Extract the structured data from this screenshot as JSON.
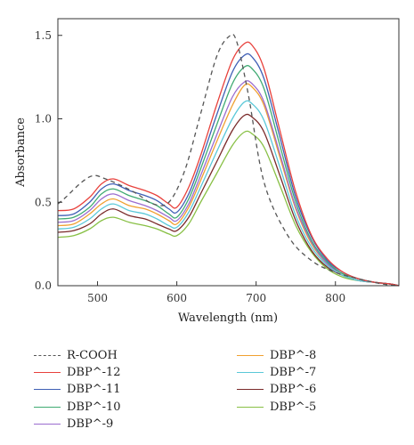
{
  "chart_data": {
    "type": "line",
    "title": "",
    "xlabel": "Wavelength (nm)",
    "ylabel": "Absorbance",
    "xlim": [
      450,
      880
    ],
    "ylim": [
      0.0,
      1.6
    ],
    "xticks": [
      500,
      600,
      700,
      800
    ],
    "xtick_labels": [
      "500",
      "600",
      "700",
      "800"
    ],
    "yticks": [
      0.0,
      0.5,
      1.0,
      1.5
    ],
    "ytick_labels": [
      "0.0",
      "0.5",
      "1.0",
      "1.5"
    ],
    "grid": false,
    "legend_position": "bottom, two columns",
    "series": [
      {
        "name": "R-COOH",
        "color": "#555555",
        "dashed": true,
        "x": [
          450,
          460,
          480,
          495,
          510,
          530,
          550,
          570,
          590,
          610,
          630,
          650,
          665,
          675,
          690,
          710,
          740,
          770,
          800,
          830,
          860,
          880
        ],
        "y": [
          0.49,
          0.53,
          0.62,
          0.66,
          0.64,
          0.6,
          0.55,
          0.49,
          0.5,
          0.69,
          1.03,
          1.37,
          1.49,
          1.47,
          1.15,
          0.62,
          0.3,
          0.15,
          0.08,
          0.04,
          0.01,
          0.0
        ]
      },
      {
        "name": "DBP^-12",
        "color": "#e8413c",
        "x": [
          450,
          470,
          490,
          505,
          520,
          540,
          560,
          575,
          590,
          600,
          615,
          630,
          650,
          670,
          685,
          695,
          710,
          730,
          750,
          770,
          790,
          810,
          830,
          850,
          870,
          880
        ],
        "y": [
          0.45,
          0.46,
          0.53,
          0.61,
          0.64,
          0.6,
          0.57,
          0.54,
          0.49,
          0.47,
          0.59,
          0.78,
          1.08,
          1.35,
          1.45,
          1.44,
          1.3,
          0.93,
          0.56,
          0.3,
          0.16,
          0.08,
          0.04,
          0.02,
          0.01,
          0.0
        ]
      },
      {
        "name": "DBP^-11",
        "color": "#3f5fb5",
        "x": [
          450,
          470,
          490,
          505,
          520,
          540,
          560,
          575,
          590,
          600,
          615,
          630,
          650,
          670,
          685,
          695,
          710,
          730,
          750,
          770,
          790,
          810,
          830,
          850,
          870,
          880
        ],
        "y": [
          0.42,
          0.43,
          0.5,
          0.58,
          0.61,
          0.57,
          0.54,
          0.51,
          0.46,
          0.44,
          0.55,
          0.74,
          1.02,
          1.28,
          1.38,
          1.37,
          1.24,
          0.89,
          0.53,
          0.29,
          0.15,
          0.08,
          0.04,
          0.02,
          0.01,
          0.0
        ]
      },
      {
        "name": "DBP^-10",
        "color": "#3faa72",
        "x": [
          450,
          470,
          490,
          505,
          520,
          540,
          560,
          575,
          590,
          600,
          615,
          630,
          650,
          670,
          685,
          695,
          710,
          730,
          750,
          770,
          790,
          810,
          830,
          850,
          870,
          880
        ],
        "y": [
          0.4,
          0.41,
          0.47,
          0.55,
          0.58,
          0.54,
          0.51,
          0.48,
          0.43,
          0.41,
          0.52,
          0.7,
          0.96,
          1.21,
          1.31,
          1.3,
          1.18,
          0.84,
          0.5,
          0.27,
          0.14,
          0.07,
          0.04,
          0.02,
          0.01,
          0.0
        ]
      },
      {
        "name": "DBP^-9",
        "color": "#9b6ccf",
        "x": [
          450,
          470,
          490,
          505,
          520,
          540,
          560,
          575,
          590,
          600,
          615,
          630,
          650,
          670,
          685,
          695,
          710,
          730,
          750,
          770,
          790,
          810,
          830,
          850,
          870,
          880
        ],
        "y": [
          0.38,
          0.39,
          0.45,
          0.52,
          0.55,
          0.51,
          0.48,
          0.45,
          0.41,
          0.39,
          0.49,
          0.66,
          0.9,
          1.13,
          1.22,
          1.21,
          1.1,
          0.79,
          0.47,
          0.26,
          0.13,
          0.07,
          0.04,
          0.02,
          0.01,
          0.0
        ]
      },
      {
        "name": "DBP^-8",
        "color": "#f0a030",
        "x": [
          450,
          470,
          490,
          505,
          520,
          540,
          560,
          575,
          590,
          600,
          615,
          630,
          650,
          670,
          685,
          695,
          710,
          730,
          750,
          770,
          790,
          810,
          830,
          850,
          870,
          880
        ],
        "y": [
          0.36,
          0.37,
          0.43,
          0.49,
          0.52,
          0.48,
          0.46,
          0.43,
          0.39,
          0.37,
          0.47,
          0.63,
          0.86,
          1.08,
          1.2,
          1.19,
          1.08,
          0.77,
          0.46,
          0.25,
          0.13,
          0.07,
          0.04,
          0.02,
          0.01,
          0.0
        ]
      },
      {
        "name": "DBP^-7",
        "color": "#5ac8d8",
        "x": [
          450,
          470,
          490,
          505,
          520,
          540,
          560,
          575,
          590,
          600,
          615,
          630,
          650,
          670,
          685,
          695,
          710,
          730,
          750,
          770,
          790,
          810,
          830,
          850,
          870,
          880
        ],
        "y": [
          0.34,
          0.35,
          0.4,
          0.46,
          0.49,
          0.45,
          0.43,
          0.4,
          0.36,
          0.35,
          0.44,
          0.59,
          0.8,
          1.0,
          1.1,
          1.09,
          0.99,
          0.71,
          0.42,
          0.23,
          0.12,
          0.06,
          0.03,
          0.02,
          0.01,
          0.0
        ]
      },
      {
        "name": "DBP^-6",
        "color": "#7a2a2a",
        "x": [
          450,
          470,
          490,
          505,
          520,
          540,
          560,
          575,
          590,
          600,
          615,
          630,
          650,
          670,
          685,
          695,
          710,
          730,
          750,
          770,
          790,
          810,
          830,
          850,
          870,
          880
        ],
        "y": [
          0.32,
          0.33,
          0.37,
          0.43,
          0.46,
          0.42,
          0.4,
          0.37,
          0.34,
          0.33,
          0.41,
          0.55,
          0.74,
          0.93,
          1.02,
          1.01,
          0.92,
          0.66,
          0.39,
          0.21,
          0.11,
          0.06,
          0.03,
          0.02,
          0.01,
          0.0
        ]
      },
      {
        "name": "DBP^-5",
        "color": "#88c045",
        "x": [
          450,
          470,
          490,
          505,
          520,
          540,
          560,
          575,
          590,
          600,
          615,
          630,
          650,
          670,
          685,
          695,
          710,
          730,
          750,
          770,
          790,
          810,
          830,
          850,
          870,
          880
        ],
        "y": [
          0.29,
          0.3,
          0.34,
          0.39,
          0.41,
          0.38,
          0.36,
          0.34,
          0.31,
          0.3,
          0.37,
          0.5,
          0.67,
          0.84,
          0.92,
          0.91,
          0.83,
          0.6,
          0.36,
          0.2,
          0.1,
          0.05,
          0.03,
          0.02,
          0.01,
          0.0
        ]
      }
    ]
  }
}
